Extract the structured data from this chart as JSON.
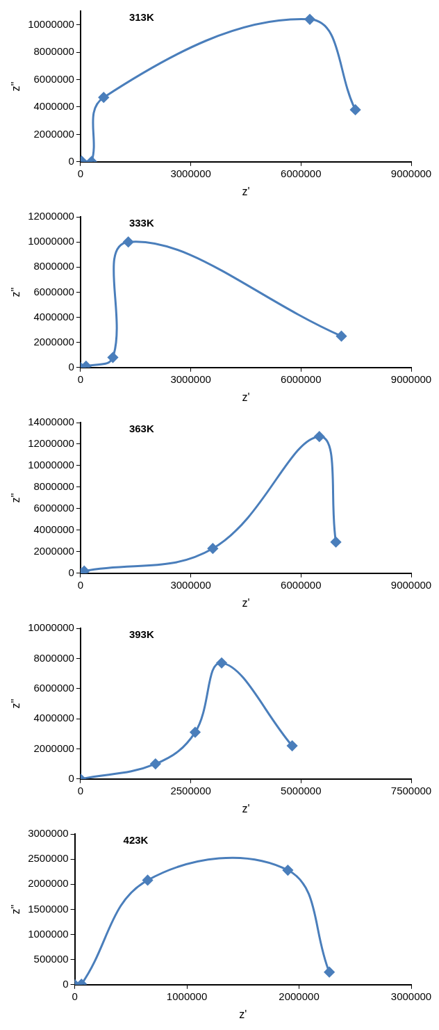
{
  "chart_data": [
    {
      "type": "scatter",
      "title": "313K",
      "xlabel": "z'",
      "ylabel": "z''",
      "marker": "diamond",
      "grid": false,
      "legend": false,
      "xlim": [
        0,
        9000000
      ],
      "xticks": [
        0,
        3000000,
        6000000,
        9000000
      ],
      "ylim": [
        0,
        11000000
      ],
      "yticks": [
        0,
        2000000,
        4000000,
        6000000,
        8000000,
        10000000
      ],
      "series": [
        {
          "type": "line",
          "color": "#4a7ebb",
          "x": [
            30000,
            300000,
            630000,
            6240000,
            7480000
          ],
          "values": [
            50000,
            20000,
            4700000,
            10400000,
            3800000
          ]
        }
      ]
    },
    {
      "type": "scatter",
      "title": "333K",
      "xlabel": "z'",
      "ylabel": "z''",
      "marker": "diamond",
      "grid": false,
      "legend": false,
      "xlim": [
        0,
        9000000
      ],
      "xticks": [
        0,
        3000000,
        6000000,
        9000000
      ],
      "ylim": [
        0,
        12000000
      ],
      "yticks": [
        0,
        2000000,
        4000000,
        6000000,
        8000000,
        10000000,
        12000000
      ],
      "series": [
        {
          "type": "line",
          "color": "#4a7ebb",
          "x": [
            0,
            150000,
            880000,
            1300000,
            7100000
          ],
          "values": [
            0,
            100000,
            800000,
            10000000,
            2500000
          ]
        }
      ]
    },
    {
      "type": "scatter",
      "title": "363K",
      "xlabel": "z'",
      "ylabel": "z''",
      "marker": "diamond",
      "grid": false,
      "legend": false,
      "xlim": [
        0,
        9000000
      ],
      "xticks": [
        0,
        3000000,
        6000000,
        9000000
      ],
      "ylim": [
        0,
        14000000
      ],
      "yticks": [
        0,
        2000000,
        4000000,
        6000000,
        8000000,
        10000000,
        12000000,
        14000000
      ],
      "series": [
        {
          "type": "line",
          "color": "#4a7ebb",
          "x": [
            0,
            100000,
            3600000,
            6500000,
            6950000
          ],
          "values": [
            0,
            200000,
            2300000,
            12700000,
            2900000
          ]
        }
      ]
    },
    {
      "type": "scatter",
      "title": "393K",
      "xlabel": "z'",
      "ylabel": "z''",
      "marker": "diamond",
      "grid": false,
      "legend": false,
      "xlim": [
        0,
        7500000
      ],
      "xticks": [
        0,
        2500000,
        5000000,
        7500000
      ],
      "ylim": [
        0,
        10000000
      ],
      "yticks": [
        0,
        2000000,
        4000000,
        6000000,
        8000000,
        10000000
      ],
      "series": [
        {
          "type": "line",
          "color": "#4a7ebb",
          "x": [
            0,
            1700000,
            2600000,
            3200000,
            4800000
          ],
          "values": [
            0,
            1000000,
            3100000,
            7700000,
            2200000
          ]
        }
      ]
    },
    {
      "type": "scatter",
      "title": "423K",
      "xlabel": "z'",
      "ylabel": "z''",
      "marker": "diamond",
      "grid": false,
      "legend": false,
      "xlim": [
        0,
        3000000
      ],
      "xticks": [
        0,
        1000000,
        2000000,
        3000000
      ],
      "ylim": [
        0,
        3000000
      ],
      "yticks": [
        0,
        500000,
        1000000,
        1500000,
        2000000,
        2500000,
        3000000
      ],
      "series": [
        {
          "type": "line",
          "color": "#4a7ebb",
          "x": [
            0,
            60000,
            650000,
            1900000,
            2270000
          ],
          "values": [
            0,
            10000,
            2080000,
            2280000,
            250000
          ]
        }
      ]
    }
  ]
}
